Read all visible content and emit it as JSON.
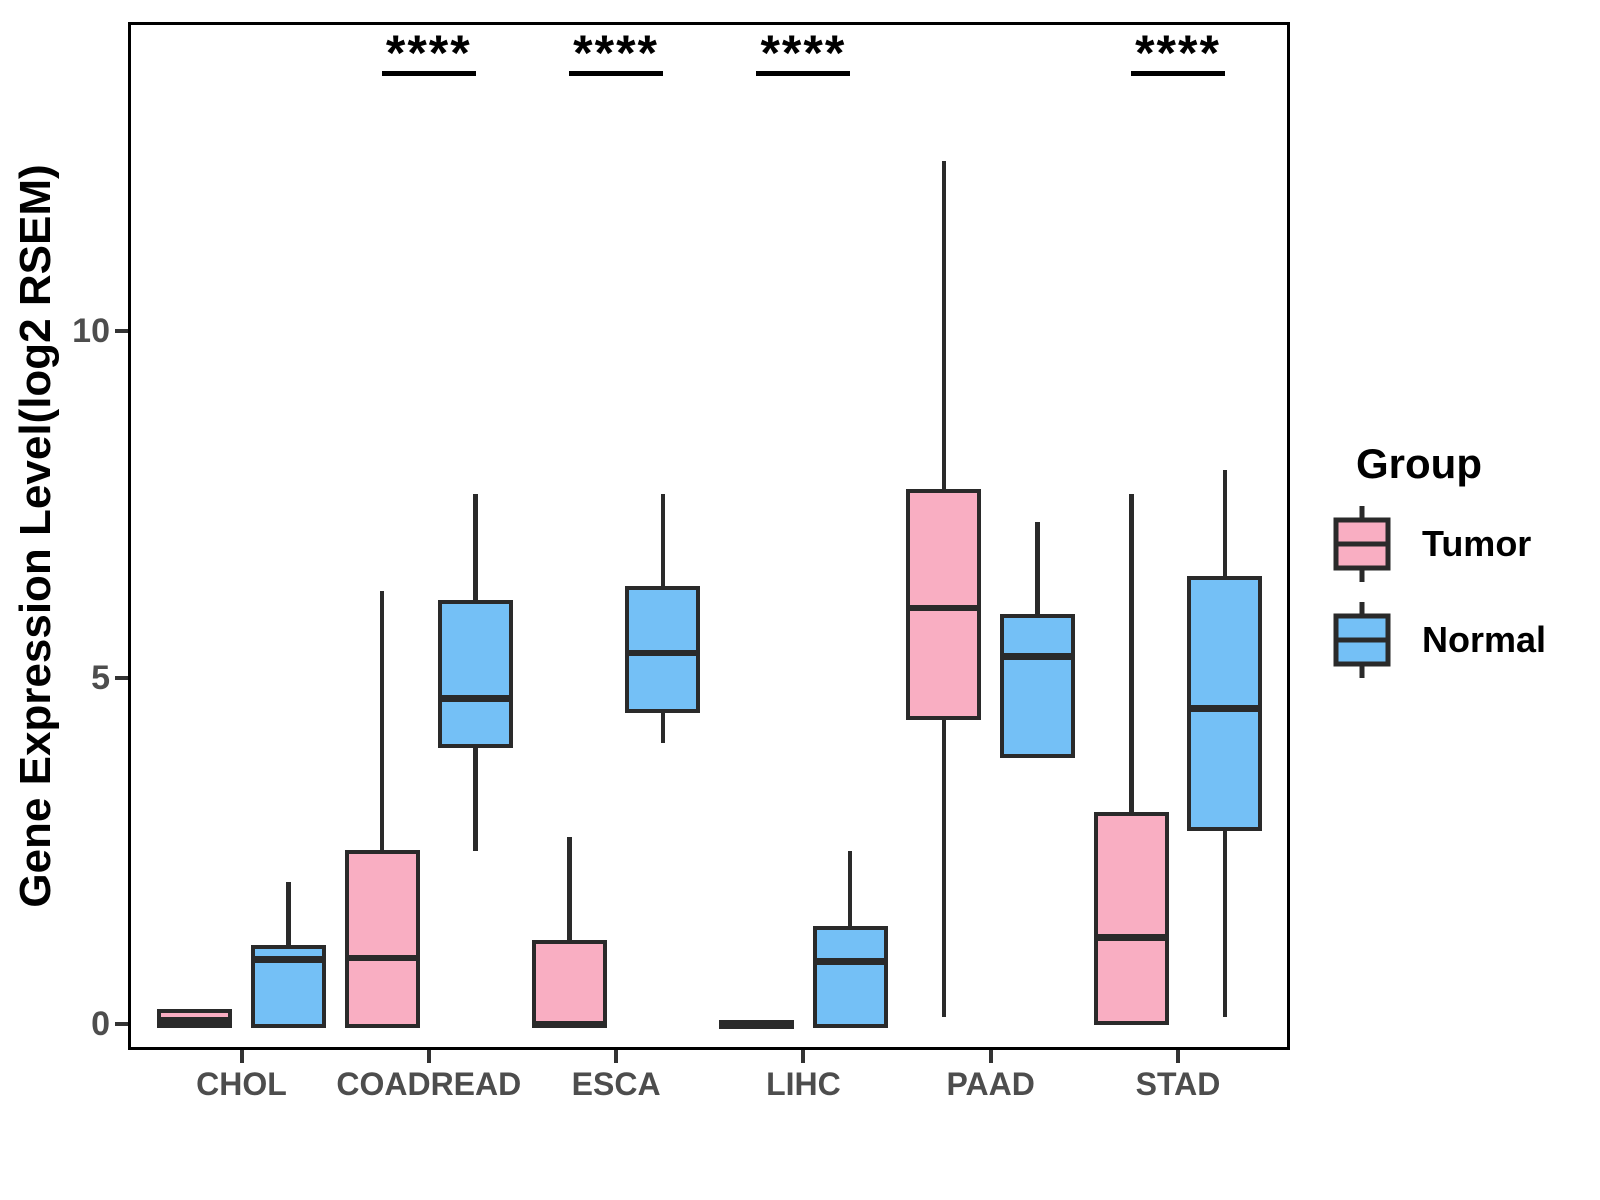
{
  "figure": {
    "background": "#FFFFFF",
    "panel_border_color": "#000000",
    "box_border_color": "#2A2A2A",
    "tick_text_color": "#4D4D4D"
  },
  "legend": {
    "title": "Group",
    "items": [
      {
        "label": "Tumor",
        "color": "#F9AEC2"
      },
      {
        "label": "Normal",
        "color": "#74C0F6"
      }
    ]
  },
  "chart_data": {
    "type": "boxplot",
    "title": "",
    "xlabel": "",
    "ylabel": "Gene Expression Level(log2 RSEM)",
    "categories": [
      "CHOL",
      "COADREAD",
      "ESCA",
      "LIHC",
      "PAAD",
      "STAD"
    ],
    "y_ticks": [
      0,
      5,
      10
    ],
    "y_tick_labels": [
      "0",
      "5",
      "10"
    ],
    "ylim": [
      -0.4,
      14.5
    ],
    "grid": false,
    "legend_position": "right",
    "series": [
      {
        "name": "Tumor",
        "color": "#F9AEC2",
        "boxes": [
          {
            "category": "CHOL",
            "min": 0,
            "q1": 0,
            "median": 0.05,
            "q3": 0.15,
            "max": 0.15
          },
          {
            "category": "COADREAD",
            "min": 0,
            "q1": 0,
            "median": 0.95,
            "q3": 2.45,
            "max": 6.25
          },
          {
            "category": "ESCA",
            "min": 0,
            "q1": 0,
            "median": 0,
            "q3": 1.15,
            "max": 2.7
          },
          {
            "category": "LIHC",
            "min": 0,
            "q1": 0,
            "median": 0,
            "q3": 0,
            "max": 0
          },
          {
            "category": "PAAD",
            "min": 0.1,
            "q1": 4.45,
            "median": 6.0,
            "q3": 7.65,
            "max": 12.45
          },
          {
            "category": "STAD",
            "min": 0,
            "q1": 0.05,
            "median": 1.25,
            "q3": 3.0,
            "max": 7.65
          }
        ]
      },
      {
        "name": "Normal",
        "color": "#74C0F6",
        "boxes": [
          {
            "category": "CHOL",
            "min": 0,
            "q1": 0,
            "median": 0.93,
            "q3": 1.08,
            "max": 2.05
          },
          {
            "category": "COADREAD",
            "min": 2.5,
            "q1": 4.05,
            "median": 4.7,
            "q3": 6.05,
            "max": 7.65
          },
          {
            "category": "ESCA",
            "min": 4.05,
            "q1": 4.55,
            "median": 5.35,
            "q3": 6.25,
            "max": 7.65
          },
          {
            "category": "LIHC",
            "min": 0,
            "q1": 0,
            "median": 0.9,
            "q3": 1.35,
            "max": 2.5
          },
          {
            "category": "PAAD",
            "min": 3.9,
            "q1": 3.9,
            "median": 5.3,
            "q3": 5.85,
            "max": 7.25
          },
          {
            "category": "STAD",
            "min": 0.1,
            "q1": 2.85,
            "median": 4.55,
            "q3": 6.4,
            "max": 8.0
          }
        ]
      }
    ],
    "significance": [
      {
        "category": "COADREAD",
        "label": "****"
      },
      {
        "category": "ESCA",
        "label": "****"
      },
      {
        "category": "LIHC",
        "label": "****"
      },
      {
        "category": "STAD",
        "label": "****"
      }
    ]
  }
}
